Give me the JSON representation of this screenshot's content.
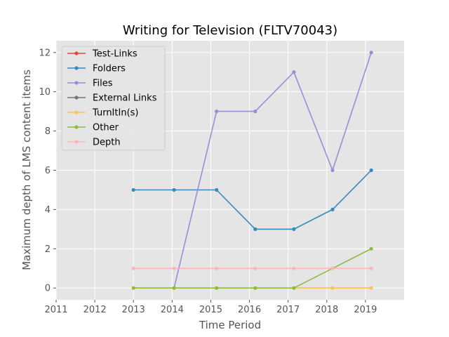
{
  "chart_data": {
    "type": "line",
    "title": "Writing for Television (FLTV70043)",
    "xlabel": "Time Period",
    "ylabel": "Maximum depth of LMS content items",
    "xlim": [
      2011,
      2020
    ],
    "ylim": [
      -0.6,
      12.6
    ],
    "x_ticks": [
      "2011",
      "2012",
      "2013",
      "2014",
      "2015",
      "2016",
      "2017",
      "2018",
      "2019"
    ],
    "y_ticks": [
      "0",
      "2",
      "4",
      "6",
      "8",
      "10",
      "12"
    ],
    "grid": true,
    "legend_position": "top-left",
    "x": [
      2013.0,
      2014.05,
      2015.15,
      2016.15,
      2017.15,
      2018.15,
      2019.15
    ],
    "series": [
      {
        "name": "Test-Links",
        "color": "#E24A33",
        "values": [
          null,
          null,
          null,
          null,
          null,
          null,
          null
        ]
      },
      {
        "name": "Folders",
        "color": "#348ABD",
        "values": [
          5,
          5,
          5,
          3,
          3,
          4,
          6
        ]
      },
      {
        "name": "Files",
        "color": "#988ED5",
        "values": [
          null,
          0,
          9,
          9,
          11,
          6,
          12
        ]
      },
      {
        "name": "External Links",
        "color": "#777777",
        "values": [
          null,
          null,
          null,
          null,
          null,
          null,
          null
        ]
      },
      {
        "name": "TurnItIn(s)",
        "color": "#FBC15E",
        "values": [
          null,
          null,
          null,
          null,
          0,
          0,
          0
        ]
      },
      {
        "name": "Other",
        "color": "#8EBA42",
        "values": [
          0,
          0,
          0,
          0,
          0,
          1,
          2
        ]
      },
      {
        "name": "Depth",
        "color": "#FFB5B8",
        "values": [
          1,
          1,
          1,
          1,
          1,
          1,
          1
        ]
      }
    ]
  }
}
